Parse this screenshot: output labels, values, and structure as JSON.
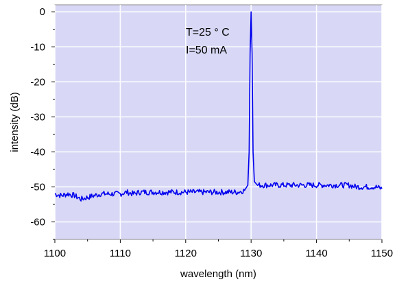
{
  "chart_data": {
    "type": "line",
    "title": "",
    "xlabel": "wavelength (nm)",
    "ylabel": "intensity (dB)",
    "xlim": [
      1100,
      1150
    ],
    "ylim": [
      -65,
      2
    ],
    "xticks": [
      1100,
      1110,
      1120,
      1130,
      1140,
      1150
    ],
    "yticks": [
      0,
      -10,
      -20,
      -30,
      -40,
      -50,
      -60
    ],
    "grid": true,
    "annotations": [
      "T=25 ° C",
      "I=50 mA"
    ],
    "colors": {
      "plot_bg": "#d8d8f6",
      "grid": "#ffffff",
      "line": "#0000ee"
    },
    "series": [
      {
        "x": [
          1100,
          1101,
          1102,
          1103,
          1104,
          1105,
          1106,
          1107,
          1108,
          1109,
          1110,
          1111,
          1112,
          1113,
          1114,
          1115,
          1116,
          1117,
          1118,
          1119,
          1120,
          1121,
          1122,
          1123,
          1124,
          1125,
          1126,
          1127,
          1128,
          1129,
          1129.5,
          1129.7,
          1129.85,
          1130,
          1130.15,
          1130.3,
          1130.5,
          1131,
          1132,
          1133,
          1134,
          1135,
          1136,
          1137,
          1138,
          1139,
          1140,
          1141,
          1142,
          1143,
          1144,
          1145,
          1146,
          1147,
          1148,
          1149,
          1150
        ],
        "y": [
          -52,
          -52.5,
          -52,
          -52.5,
          -53.5,
          -53,
          -52.5,
          -52,
          -52,
          -52,
          -52,
          -51.5,
          -52,
          -51.5,
          -51.5,
          -51.5,
          -51.5,
          -51.5,
          -51.5,
          -51.5,
          -51.5,
          -51.5,
          -51.5,
          -51.5,
          -51.5,
          -51.5,
          -51.5,
          -51.5,
          -51.5,
          -51,
          -49.5,
          -40,
          -12,
          0,
          -12,
          -40,
          -48.5,
          -49.5,
          -49.5,
          -49.5,
          -49.5,
          -49.5,
          -49.5,
          -49.5,
          -49.5,
          -49.5,
          -49.5,
          -49.5,
          -49.5,
          -49.5,
          -49.5,
          -49.5,
          -50,
          -50,
          -50,
          -50,
          -50.5
        ]
      }
    ]
  }
}
